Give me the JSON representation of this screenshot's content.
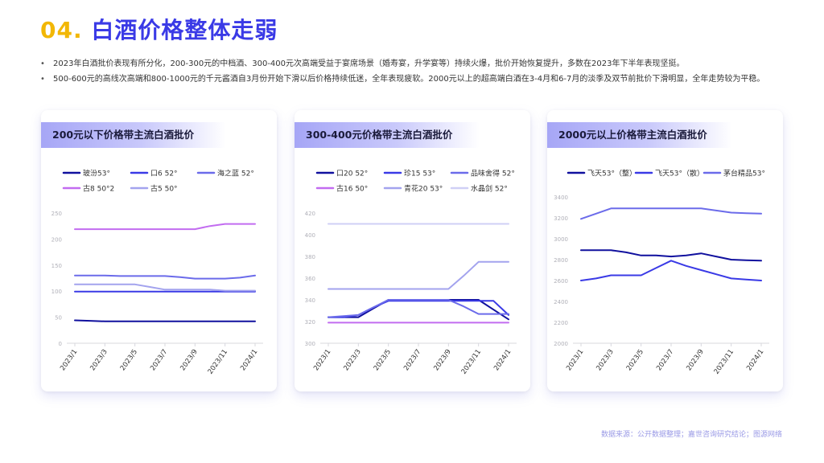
{
  "header": {
    "num": "04.",
    "title": "白酒价格整体走弱"
  },
  "bullets": [
    "2023年白酒批价表现有所分化，200-300元的中档酒、300-400元次高端受益于宴席场景（婚寿宴，升学宴等）持续火爆，批价开始恢复提升，多数在2023年下半年表现坚挺。",
    "500-600元的高线次高端和800-1000元的千元酱酒自3月份开始下滑以后价格持续低迷，全年表现疲软。2000元以上的超高端白酒在3-4月和6-7月的淡季及双节前批价下滑明显，全年走势较为平稳。"
  ],
  "source": "数据来源：公开数据整理；嘉世咨询研究结论；图源网络",
  "chart_data": [
    {
      "type": "line",
      "title": "200元以下价格带主流白酒批价",
      "x": [
        "2023/1",
        "2023/2",
        "2023/3",
        "2023/4",
        "2023/5",
        "2023/6",
        "2023/7",
        "2023/8",
        "2023/9",
        "2023/10",
        "2023/11",
        "2023/12",
        "2024/1"
      ],
      "xticks": [
        "2023/1",
        "2023/3",
        "2023/5",
        "2023/7",
        "2023/9",
        "2023/11",
        "2024/1"
      ],
      "yticks": [
        0,
        50,
        100,
        150,
        200,
        250
      ],
      "ylim": [
        0,
        250
      ],
      "series": [
        {
          "name": "玻汾53°",
          "color": "#10109e",
          "values": [
            44,
            43,
            42,
            42,
            42,
            42,
            42,
            42,
            42,
            42,
            42,
            42,
            42
          ]
        },
        {
          "name": "口6 52°",
          "color": "#3a3ae6",
          "values": [
            99,
            99,
            99,
            99,
            99,
            99,
            99,
            99,
            99,
            99,
            99,
            99,
            99
          ]
        },
        {
          "name": "海之蓝 52°",
          "color": "#6b6bea",
          "values": [
            130,
            130,
            130,
            129,
            129,
            129,
            129,
            127,
            124,
            124,
            124,
            126,
            130
          ]
        },
        {
          "name": "古8 50°2",
          "color": "#c26cf0",
          "values": [
            219,
            219,
            219,
            219,
            219,
            219,
            219,
            219,
            219,
            225,
            229,
            229,
            229
          ]
        },
        {
          "name": "古5 50°",
          "color": "#a3a3ee",
          "values": [
            113,
            113,
            113,
            113,
            113,
            108,
            103,
            103,
            103,
            103,
            101,
            101,
            101
          ]
        }
      ]
    },
    {
      "type": "line",
      "title": "300-400元价格带主流白酒批价",
      "x": [
        "2023/1",
        "2023/2",
        "2023/3",
        "2023/4",
        "2023/5",
        "2023/6",
        "2023/7",
        "2023/8",
        "2023/9",
        "2023/10",
        "2023/11",
        "2023/12",
        "2024/1"
      ],
      "xticks": [
        "2023/1",
        "2023/3",
        "2023/5",
        "2023/7",
        "2023/9",
        "2023/11",
        "2024/1"
      ],
      "yticks": [
        300,
        320,
        340,
        360,
        380,
        400,
        420
      ],
      "ylim": [
        300,
        420
      ],
      "series": [
        {
          "name": "口20 52°",
          "color": "#10109e",
          "values": [
            324,
            324,
            324,
            332,
            340,
            340,
            340,
            340,
            340,
            340,
            340,
            331,
            322
          ]
        },
        {
          "name": "珍15 53°",
          "color": "#3a3ae6",
          "values": [
            324,
            324,
            326,
            333,
            339,
            339,
            339,
            339,
            339,
            339,
            339,
            339,
            326
          ]
        },
        {
          "name": "品味舍得 52°",
          "color": "#6b6bea",
          "values": [
            324,
            325,
            326,
            333,
            340,
            340,
            340,
            340,
            340,
            334,
            327,
            327,
            327
          ]
        },
        {
          "name": "古16 50°",
          "color": "#c26cf0",
          "values": [
            319,
            319,
            319,
            319,
            319,
            319,
            319,
            319,
            319,
            319,
            319,
            319,
            319
          ]
        },
        {
          "name": "青花20 53°",
          "color": "#a3a3ee",
          "values": [
            350,
            350,
            350,
            350,
            350,
            350,
            350,
            350,
            350,
            362,
            375,
            375,
            375
          ]
        },
        {
          "name": "水晶剑 52°",
          "color": "#cfcff6",
          "values": [
            410,
            410,
            410,
            410,
            410,
            410,
            410,
            410,
            410,
            410,
            410,
            410,
            410
          ]
        }
      ]
    },
    {
      "type": "line",
      "title": "2000元以上价格带主流白酒批价",
      "x": [
        "2023/1",
        "2023/2",
        "2023/3",
        "2023/4",
        "2023/5",
        "2023/6",
        "2023/7",
        "2023/8",
        "2023/9",
        "2023/10",
        "2023/11",
        "2023/12",
        "2024/1"
      ],
      "xticks": [
        "2023/1",
        "2023/3",
        "2023/5",
        "2023/7",
        "2023/9",
        "2023/11",
        "2024/1"
      ],
      "yticks": [
        2000,
        2200,
        2400,
        2600,
        2800,
        3000,
        3200,
        3400
      ],
      "ylim": [
        2000,
        3400
      ],
      "series": [
        {
          "name": "飞天53°（整）",
          "color": "#10109e",
          "values": [
            2890,
            2890,
            2890,
            2870,
            2840,
            2840,
            2830,
            2840,
            2860,
            2830,
            2800,
            2795,
            2790
          ]
        },
        {
          "name": "飞天53°（散）",
          "color": "#3a3ae6",
          "values": [
            2600,
            2620,
            2650,
            2650,
            2650,
            2720,
            2790,
            2740,
            2700,
            2660,
            2620,
            2610,
            2600
          ]
        },
        {
          "name": "茅台精品53°",
          "color": "#6b6bea",
          "values": [
            3190,
            3240,
            3290,
            3290,
            3290,
            3290,
            3290,
            3290,
            3290,
            3270,
            3250,
            3245,
            3240
          ]
        }
      ]
    }
  ]
}
